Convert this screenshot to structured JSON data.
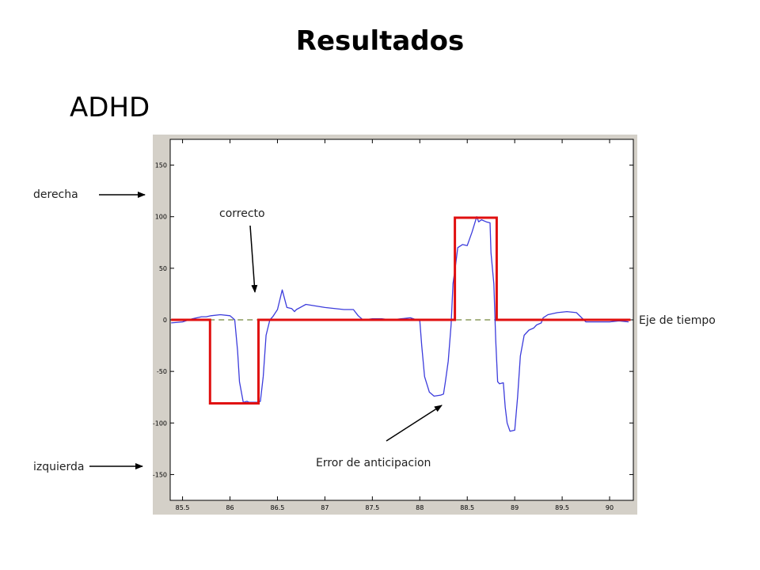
{
  "slide": {
    "title": "Resultados",
    "subtitle": "ADHD"
  },
  "annotations": {
    "derecha": "derecha",
    "izquierda": "izquierda",
    "correcto": "correcto",
    "eje_tiempo": "Eje de tiempo",
    "error": "Error de anticipacion"
  },
  "colors": {
    "frame_bg": "#d4d0c8",
    "plot_bg": "#ffffff",
    "signal": "#3c3cdc",
    "stimulus": "#e01010",
    "baseline": "#8a9a5b"
  },
  "chart_data": {
    "type": "line",
    "xlim": [
      85.37,
      90.25
    ],
    "ylim": [
      -175,
      175
    ],
    "xticks": [
      "85.5",
      "86",
      "86.5",
      "87",
      "87.5",
      "88",
      "88.5",
      "89",
      "89.5",
      "90"
    ],
    "yticks": [
      "150",
      "100",
      "50",
      "0",
      "-50",
      "-100",
      "-150"
    ],
    "grid": false,
    "series": [
      {
        "role": "stimulus",
        "x": [
          85.38,
          85.79,
          85.79,
          86.3,
          86.3,
          88.37,
          88.37,
          88.81,
          88.81,
          90.22
        ],
        "y": [
          0,
          0,
          -81,
          -81,
          0,
          0,
          99,
          99,
          0,
          0
        ]
      },
      {
        "role": "response",
        "x": [
          85.38,
          85.5,
          85.6,
          85.7,
          85.75,
          85.8,
          85.9,
          86.0,
          86.05,
          86.08,
          86.1,
          86.14,
          86.18,
          86.2,
          86.3,
          86.32,
          86.35,
          86.38,
          86.42,
          86.45,
          86.5,
          86.55,
          86.6,
          86.65,
          86.68,
          86.7,
          86.8,
          87.0,
          87.2,
          87.3,
          87.35,
          87.4,
          87.5,
          87.6,
          87.7,
          87.8,
          87.9,
          88.0,
          88.02,
          88.05,
          88.1,
          88.15,
          88.22,
          88.25,
          88.27,
          88.3,
          88.33,
          88.35,
          88.38,
          88.4,
          88.45,
          88.5,
          88.55,
          88.6,
          88.62,
          88.65,
          88.7,
          88.74,
          88.75,
          88.78,
          88.8,
          88.82,
          88.84,
          88.88,
          88.9,
          88.92,
          88.95,
          89.0,
          89.03,
          89.06,
          89.1,
          89.15,
          89.2,
          89.23,
          89.28,
          89.3,
          89.35,
          89.45,
          89.55,
          89.65,
          89.75,
          89.8,
          89.85,
          89.9,
          90.0,
          90.1,
          90.2
        ],
        "y": [
          -3,
          -2,
          1,
          3,
          3,
          4,
          5,
          4,
          0,
          -30,
          -60,
          -80,
          -79,
          -80,
          -80,
          -79,
          -55,
          -15,
          0,
          3,
          10,
          29,
          12,
          11,
          8,
          10,
          15,
          12,
          10,
          10,
          4,
          0,
          1,
          1,
          0,
          1,
          2,
          -1,
          -25,
          -55,
          -70,
          -74,
          -73,
          -72,
          -60,
          -40,
          -5,
          35,
          55,
          70,
          73,
          72,
          85,
          100,
          95,
          97,
          95,
          94,
          65,
          35,
          -20,
          -60,
          -62,
          -61,
          -85,
          -100,
          -108,
          -107,
          -75,
          -35,
          -15,
          -10,
          -8,
          -5,
          -3,
          2,
          5,
          7,
          8,
          7,
          -2,
          -2,
          -2,
          -2,
          -2,
          -1,
          -2
        ]
      },
      {
        "role": "baseline",
        "x": [
          85.38,
          90.22
        ],
        "y": [
          0,
          0
        ]
      }
    ]
  }
}
